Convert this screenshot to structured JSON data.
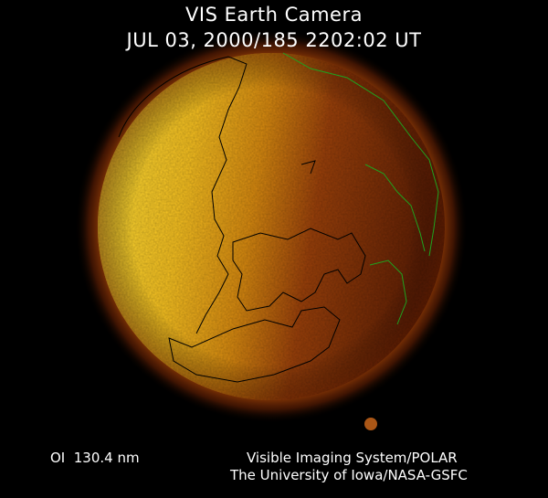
{
  "header": {
    "title": "VIS Earth Camera",
    "timestamp": "JUL 03, 2000/185 2202:02 UT"
  },
  "footer": {
    "wavelength": "OI  130.4 nm",
    "instrument": "Visible Imaging System/POLAR",
    "credit": "The University of Iowa/NASA-GSFC"
  },
  "image": {
    "subject": "earth-globe",
    "colors": {
      "dayside": "#ffe43a",
      "mid": "#e08a10",
      "nightside": "#6e2404",
      "halo": "#a04008",
      "coastline_day": "#000000",
      "coastline_night": "#1fa21f"
    }
  }
}
